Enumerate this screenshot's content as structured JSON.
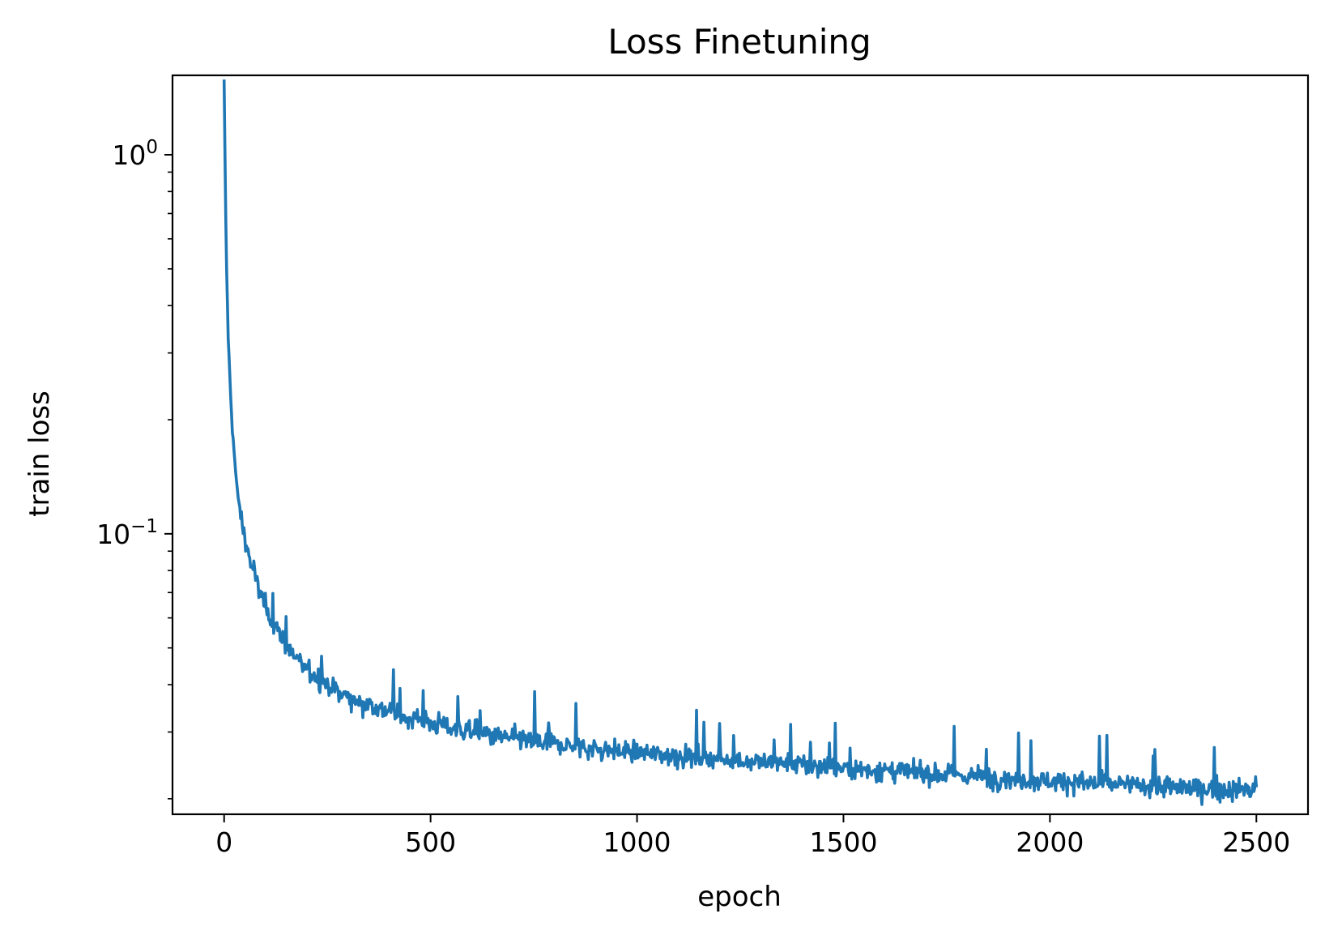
{
  "chart_data": {
    "type": "line",
    "title": "Loss Finetuning",
    "xlabel": "epoch",
    "ylabel": "train loss",
    "xlim": [
      -125,
      2625
    ],
    "ylim": [
      0.0182,
      1.62
    ],
    "yscale": "log",
    "grid": false,
    "legend": "none",
    "x_ticks": [
      0,
      500,
      1000,
      1500,
      2000,
      2500
    ],
    "x_tick_labels": [
      "0",
      "500",
      "1000",
      "1500",
      "2000",
      "2500"
    ],
    "y_major_ticks": [
      0.1,
      1
    ],
    "y_tick_labels": [
      {
        "base": "10",
        "exp": "−1"
      },
      {
        "base": "10",
        "exp": "0"
      }
    ],
    "y_minor_ticks": [
      0.02,
      0.03,
      0.04,
      0.05,
      0.06,
      0.07,
      0.08,
      0.09,
      0.2,
      0.3,
      0.4,
      0.5,
      0.6,
      0.7,
      0.8,
      0.9
    ],
    "series": [
      {
        "color": "#1f77b4",
        "x": [
          0,
          5,
          10,
          15,
          20,
          25,
          30,
          40,
          50,
          60,
          70,
          80,
          90,
          100,
          120,
          140,
          160,
          180,
          200,
          250,
          300,
          350,
          400,
          450,
          500,
          550,
          600,
          650,
          700,
          750,
          800,
          850,
          900,
          950,
          1000,
          1100,
          1200,
          1300,
          1400,
          1500,
          1600,
          1700,
          1800,
          1900,
          2000,
          2100,
          2200,
          2300,
          2400,
          2500
        ],
        "y": [
          1.55,
          0.55,
          0.33,
          0.24,
          0.19,
          0.16,
          0.135,
          0.112,
          0.098,
          0.088,
          0.08,
          0.074,
          0.069,
          0.064,
          0.058,
          0.053,
          0.049,
          0.046,
          0.044,
          0.04,
          0.037,
          0.0355,
          0.034,
          0.0328,
          0.0318,
          0.0308,
          0.03,
          0.0293,
          0.0288,
          0.0283,
          0.0279,
          0.0275,
          0.0271,
          0.0268,
          0.0265,
          0.026,
          0.0255,
          0.025,
          0.0245,
          0.0241,
          0.0237,
          0.0233,
          0.023,
          0.0226,
          0.0223,
          0.022,
          0.0217,
          0.0214,
          0.0212,
          0.021
        ]
      }
    ]
  }
}
